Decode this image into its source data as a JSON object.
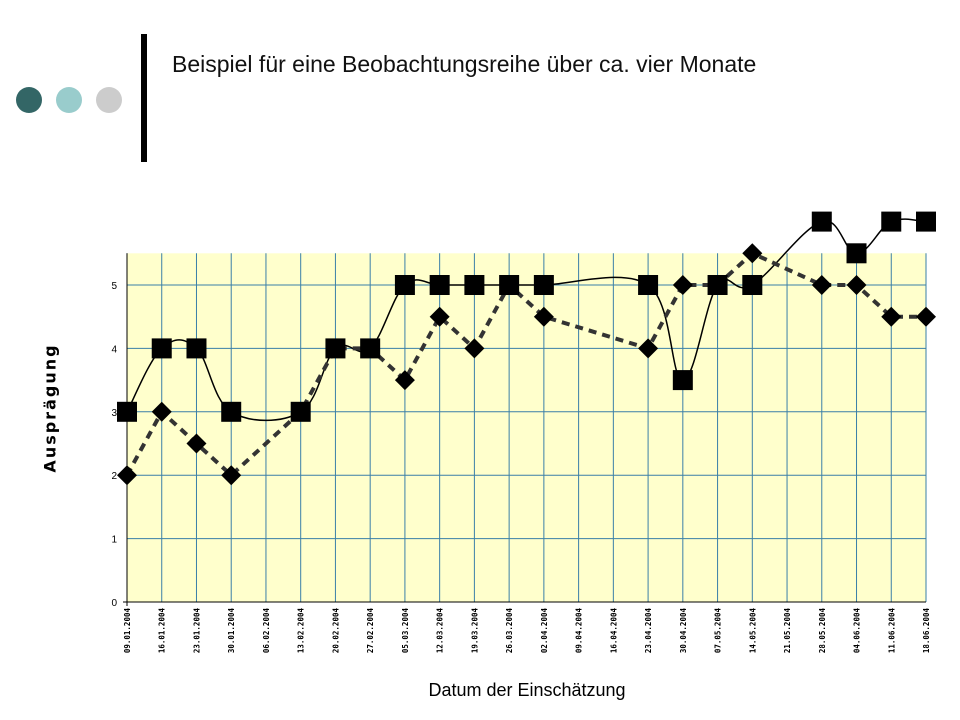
{
  "slide": {
    "title": "Beispiel für eine Beobachtungsreihe über ca. vier Monate",
    "colors": {
      "dot1": "#336666",
      "dot2": "#99cccc",
      "dot3": "#cccccc",
      "plot_bg": "#ffffcc",
      "grid": "#3a7fa8"
    }
  },
  "chart_data": {
    "type": "line",
    "title": "",
    "xlabel": "Datum der Einschätzung",
    "ylabel": "Ausprägung",
    "ylim": [
      0,
      5.5
    ],
    "yticks": [
      0,
      1,
      2,
      3,
      4,
      5
    ],
    "grid": true,
    "categories": [
      "09.01.2004",
      "16.01.2004",
      "23.01.2004",
      "30.01.2004",
      "06.02.2004",
      "13.02.2004",
      "20.02.2004",
      "27.02.2004",
      "05.03.2004",
      "12.03.2004",
      "19.03.2004",
      "26.03.2004",
      "02.04.2004",
      "09.04.2004",
      "16.04.2004",
      "23.04.2004",
      "30.04.2004",
      "07.05.2004",
      "14.05.2004",
      "21.05.2004",
      "28.05.2004",
      "04.06.2004",
      "11.06.2004",
      "18.06.2004"
    ],
    "series": [
      {
        "marker": "square",
        "line": "solid",
        "values": [
          3,
          4,
          4,
          3,
          null,
          3,
          4,
          4,
          5,
          5,
          5,
          5,
          5,
          null,
          null,
          5,
          3.5,
          5,
          5,
          null,
          6,
          5.5,
          6,
          6
        ]
      },
      {
        "marker": "diamond",
        "line": "dashed",
        "values": [
          2,
          3,
          2.5,
          2,
          null,
          3,
          4,
          4,
          3.5,
          4.5,
          4,
          5,
          4.5,
          null,
          null,
          4,
          5,
          5,
          5.5,
          null,
          5,
          5,
          4.5,
          4.5
        ]
      }
    ]
  }
}
